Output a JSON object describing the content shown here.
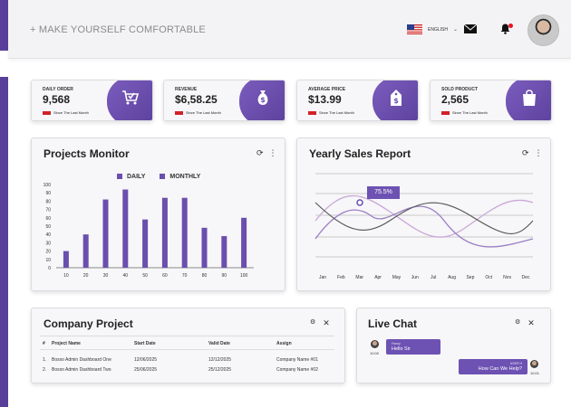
{
  "header": {
    "brand": "+ MAKE YOURSELF COMFORTABLE",
    "language": "ENGLISH"
  },
  "stats": [
    {
      "label": "DAILY ORDER",
      "value": "9,568",
      "since": "Since The Last Month",
      "icon": "cart-check-icon"
    },
    {
      "label": "REVENUE",
      "value": "$6,58.25",
      "since": "Since The Last Month",
      "icon": "money-bag-icon"
    },
    {
      "label": "AVERAGE PRICE",
      "value": "$13.99",
      "since": "Since The Last Month",
      "icon": "price-tag-icon"
    },
    {
      "label": "SOLD PRODUCT",
      "value": "2,565",
      "since": "Since The Last Month",
      "icon": "shopping-bag-icon"
    }
  ],
  "projects_monitor": {
    "title": "Projects Monitor",
    "legend": [
      "DAILY",
      "MONTHLY"
    ]
  },
  "yearly_sales": {
    "title": "Yearly Sales Report",
    "badge": "75.5%"
  },
  "company_project": {
    "title": "Company Project",
    "columns": [
      "#",
      "Project Name",
      "Start Date",
      "Valid Date",
      "Assign"
    ],
    "rows": [
      [
        "1.",
        "Bosxo Admin Dashboard One",
        "12/06/2025",
        "12/12/2025",
        "Company Name #01"
      ],
      [
        "2.",
        "Bosxo Admin Dashboard Two",
        "25/06/2025",
        "25/12/2025",
        "Company Name #02"
      ]
    ]
  },
  "live_chat": {
    "title": "Live Chat",
    "messages": [
      {
        "name": "Fanny",
        "text": "Hello Sir",
        "time": "10:00"
      },
      {
        "name": "USER H",
        "text": "How Can We Help?",
        "time": "10:01"
      }
    ]
  },
  "colors": {
    "accent": "#6a4fae",
    "dark_accent": "#5a3f9a",
    "alert": "#d2222a"
  },
  "chart_data": [
    {
      "type": "bar",
      "categories": [
        "10",
        "20",
        "30",
        "40",
        "50",
        "60",
        "70",
        "80",
        "90",
        "100"
      ],
      "series": [
        {
          "name": "DAILY",
          "values": [
            20,
            40,
            82,
            94,
            58,
            84,
            84,
            48,
            38,
            60
          ]
        }
      ],
      "ylim": [
        0,
        100
      ],
      "yticks": [
        0,
        10,
        20,
        30,
        40,
        50,
        60,
        70,
        80,
        90,
        100
      ]
    },
    {
      "type": "line",
      "categories": [
        "Jan",
        "Feb",
        "Mar",
        "Apr",
        "May",
        "Jun",
        "Jul",
        "Aug",
        "Sep",
        "Oct",
        "Nov",
        "Dec"
      ]
    }
  ]
}
